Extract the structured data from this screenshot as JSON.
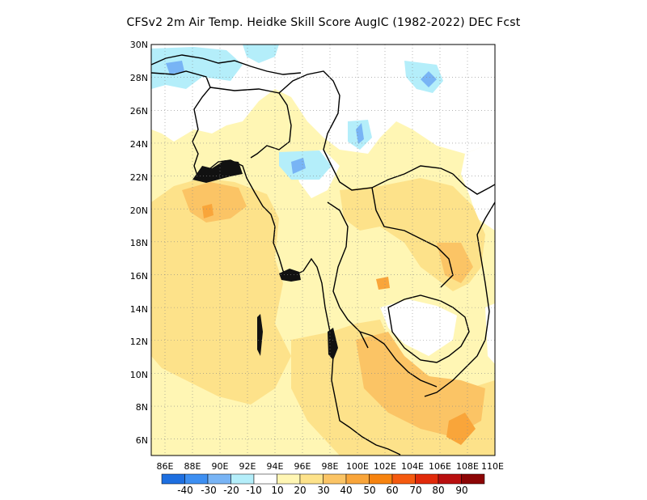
{
  "title": "CFSv2  2m Air Temp. Heidke Skill Score AugIC (1982-2022) DEC Fcst",
  "map": {
    "lon_min": 85,
    "lon_max": 110,
    "lat_min": 5,
    "lat_max": 30,
    "grid": "dotted",
    "x_ticks": [
      "86E",
      "88E",
      "90E",
      "92E",
      "94E",
      "96E",
      "98E",
      "100E",
      "102E",
      "104E",
      "106E",
      "108E",
      "110E"
    ],
    "y_ticks": [
      "6N",
      "8N",
      "10N",
      "12N",
      "14N",
      "16N",
      "18N",
      "20N",
      "22N",
      "24N",
      "26N",
      "28N",
      "30N"
    ]
  },
  "colorbar": {
    "colors": [
      "#1e6fe0",
      "#3d8ff2",
      "#78b4f5",
      "#b4eefa",
      "#ffffff",
      "#fff6b4",
      "#fde28a",
      "#fbc465",
      "#f9a53a",
      "#f7830f",
      "#f55a0f",
      "#e12a0a",
      "#b90f0f",
      "#8c0505"
    ],
    "labels": [
      "-40",
      "-30",
      "-20",
      "-10",
      "10",
      "20",
      "30",
      "40",
      "50",
      "60",
      "70",
      "80",
      "90"
    ]
  }
}
